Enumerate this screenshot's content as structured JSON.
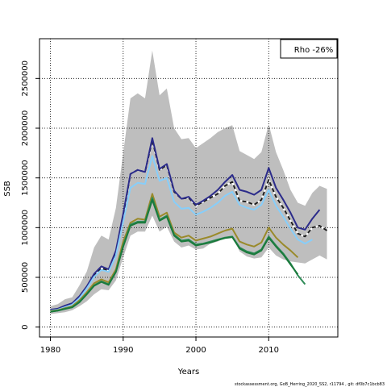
{
  "chart_data": {
    "type": "line",
    "xlabel": "Years",
    "ylabel": "SSB",
    "xlim": [
      1978.5,
      2019.5
    ],
    "ylim": [
      -100000,
      2900000
    ],
    "x_ticks": [
      1980,
      1990,
      2000,
      2010
    ],
    "y_ticks": [
      0,
      500000,
      1000000,
      1500000,
      2000000,
      2500000
    ],
    "grid": true,
    "legend_text": "Rho -26%",
    "footer": "stockassessment.org,  GoB_Herring_2020_SS2,  r11794 ,  git:  df0b7c1bcb83",
    "confidence_band": {
      "x": [
        1980,
        1981,
        1982,
        1983,
        1984,
        1985,
        1986,
        1987,
        1988,
        1989,
        1990,
        1991,
        1992,
        1993,
        1994,
        1995,
        1996,
        1997,
        1998,
        1999,
        2000,
        2001,
        2002,
        2003,
        2004,
        2005,
        2006,
        2007,
        2008,
        2009,
        2010,
        2011,
        2012,
        2013,
        2014,
        2015,
        2016,
        2017,
        2018
      ],
      "upper": [
        210000,
        230000,
        280000,
        300000,
        420000,
        560000,
        800000,
        920000,
        880000,
        1200000,
        1750000,
        2300000,
        2350000,
        2300000,
        2780000,
        2330000,
        2400000,
        2000000,
        1890000,
        1900000,
        1800000,
        1850000,
        1900000,
        1960000,
        2000000,
        2030000,
        1770000,
        1730000,
        1690000,
        1760000,
        2040000,
        1760000,
        1580000,
        1380000,
        1250000,
        1220000,
        1350000,
        1420000,
        1390000
      ],
      "lower": [
        130000,
        140000,
        150000,
        170000,
        210000,
        260000,
        330000,
        380000,
        370000,
        470000,
        700000,
        920000,
        960000,
        960000,
        1120000,
        960000,
        1010000,
        860000,
        800000,
        820000,
        780000,
        790000,
        840000,
        860000,
        900000,
        920000,
        760000,
        710000,
        690000,
        700000,
        800000,
        720000,
        680000,
        660000,
        650000,
        640000,
        680000,
        720000,
        680000
      ]
    },
    "series": [
      {
        "color": "#1e1e1e",
        "dashed": true,
        "x": [
          1980,
          1981,
          1982,
          1983,
          1984,
          1985,
          1986,
          1987,
          1988,
          1989,
          1990,
          1991,
          1992,
          1993,
          1994,
          1995,
          1996,
          1997,
          1998,
          1999,
          2000,
          2001,
          2002,
          2003,
          2004,
          2005,
          2006,
          2007,
          2008,
          2009,
          2010,
          2011,
          2012,
          2013,
          2014,
          2015,
          2016,
          2017,
          2018
        ],
        "values": [
          170000,
          180000,
          210000,
          230000,
          300000,
          400000,
          520000,
          590000,
          570000,
          750000,
          1120000,
          1540000,
          1580000,
          1560000,
          1880000,
          1580000,
          1630000,
          1360000,
          1290000,
          1300000,
          1220000,
          1260000,
          1300000,
          1340000,
          1420000,
          1460000,
          1270000,
          1260000,
          1230000,
          1280000,
          1480000,
          1310000,
          1200000,
          1070000,
          940000,
          910000,
          1000000,
          1020000,
          970000
        ]
      },
      {
        "color": "#2b2b8a",
        "x": [
          1980,
          1981,
          1982,
          1983,
          1984,
          1985,
          1986,
          1987,
          1988,
          1989,
          1990,
          1991,
          1992,
          1993,
          1994,
          1995,
          1996,
          1997,
          1998,
          1999,
          2000,
          2001,
          2002,
          2003,
          2004,
          2005,
          2006,
          2007,
          2008,
          2009,
          2010,
          2011,
          2012,
          2013,
          2014,
          2015,
          2016,
          2017
        ],
        "values": [
          175000,
          185000,
          215000,
          240000,
          310000,
          410000,
          535000,
          610000,
          580000,
          770000,
          1140000,
          1540000,
          1580000,
          1560000,
          1900000,
          1590000,
          1640000,
          1370000,
          1290000,
          1310000,
          1230000,
          1270000,
          1320000,
          1380000,
          1460000,
          1530000,
          1380000,
          1360000,
          1330000,
          1380000,
          1600000,
          1400000,
          1280000,
          1150000,
          1000000,
          980000,
          1090000,
          1180000
        ]
      },
      {
        "color": "#87cefa",
        "x": [
          1980,
          1981,
          1982,
          1983,
          1984,
          1985,
          1986,
          1987,
          1988,
          1989,
          1990,
          1991,
          1992,
          1993,
          1994,
          1995,
          1996,
          1997,
          1998,
          1999,
          2000,
          2001,
          2002,
          2003,
          2004,
          2005,
          2006,
          2007,
          2008,
          2009,
          2010,
          2011,
          2012,
          2013,
          2014,
          2015,
          2016
        ],
        "values": [
          165000,
          175000,
          200000,
          225000,
          290000,
          390000,
          505000,
          575000,
          555000,
          720000,
          1060000,
          1400000,
          1450000,
          1440000,
          1720000,
          1470000,
          1500000,
          1260000,
          1190000,
          1200000,
          1130000,
          1160000,
          1200000,
          1250000,
          1320000,
          1360000,
          1230000,
          1200000,
          1180000,
          1230000,
          1380000,
          1220000,
          1110000,
          990000,
          880000,
          840000,
          880000
        ]
      },
      {
        "color": "#9a8a2a",
        "x": [
          1980,
          1981,
          1982,
          1983,
          1984,
          1985,
          1986,
          1987,
          1988,
          1989,
          1990,
          1991,
          1992,
          1993,
          1994,
          1995,
          1996,
          1997,
          1998,
          1999,
          2000,
          2001,
          2002,
          2003,
          2004,
          2005,
          2006,
          2007,
          2008,
          2009,
          2010,
          2011,
          2012,
          2013,
          2014
        ],
        "values": [
          160000,
          170000,
          190000,
          210000,
          270000,
          350000,
          440000,
          480000,
          450000,
          580000,
          860000,
          1050000,
          1090000,
          1080000,
          1340000,
          1110000,
          1150000,
          950000,
          900000,
          920000,
          870000,
          890000,
          910000,
          940000,
          970000,
          990000,
          860000,
          830000,
          810000,
          850000,
          1000000,
          900000,
          830000,
          770000,
          700000
        ]
      },
      {
        "color": "#2e8b57",
        "x": [
          1980,
          1981,
          1982,
          1983,
          1984,
          1985,
          1986,
          1987,
          1988,
          1989,
          1990,
          1991,
          1992,
          1993,
          1994,
          1995,
          1996,
          1997,
          1998,
          1999,
          2000,
          2001,
          2002,
          2003,
          2004,
          2005,
          2006,
          2007,
          2008,
          2009,
          2010,
          2011,
          2012,
          2013,
          2014,
          2015
        ],
        "values": [
          155000,
          165000,
          185000,
          200000,
          255000,
          335000,
          420000,
          460000,
          430000,
          560000,
          820000,
          1030000,
          1060000,
          1060000,
          1300000,
          1080000,
          1120000,
          930000,
          870000,
          880000,
          830000,
          840000,
          860000,
          880000,
          900000,
          910000,
          800000,
          760000,
          740000,
          780000,
          910000,
          820000,
          740000,
          640000,
          520000,
          430000
        ]
      },
      {
        "color": "#1a7a3c",
        "x": [
          1980,
          1981,
          1982,
          1983,
          1984,
          1985,
          1986,
          1987,
          1988,
          1989,
          1990,
          1991,
          1992,
          1993,
          1994,
          1995,
          1996,
          1997,
          1998,
          1999,
          2000,
          2001,
          2002,
          2003,
          2004,
          2005,
          2006,
          2007,
          2008,
          2009,
          2010,
          2011,
          2012,
          2013,
          2014
        ],
        "values": [
          155000,
          165000,
          182000,
          198000,
          250000,
          330000,
          415000,
          455000,
          425000,
          555000,
          810000,
          1020000,
          1050000,
          1050000,
          1280000,
          1070000,
          1110000,
          920000,
          860000,
          870000,
          820000,
          835000,
          850000,
          875000,
          895000,
          905000,
          790000,
          750000,
          730000,
          770000,
          900000,
          810000,
          730000,
          630000,
          530000
        ]
      }
    ]
  }
}
